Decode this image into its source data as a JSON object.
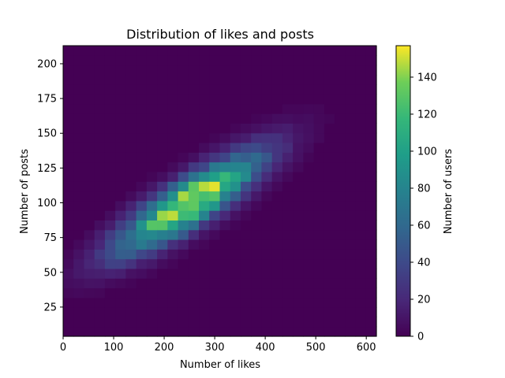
{
  "chart_data": {
    "type": "heatmap",
    "title": "Distribution of likes and posts",
    "xlabel": "Number of likes",
    "ylabel": "Number of posts",
    "colorbar_label": "Number of users",
    "colormap": "viridis",
    "xlim": [
      0,
      620
    ],
    "ylim": [
      4,
      213
    ],
    "x_ticks": [
      0,
      100,
      200,
      300,
      400,
      500,
      600
    ],
    "y_ticks": [
      25,
      50,
      75,
      100,
      125,
      150,
      175,
      200
    ],
    "colorbar_range": [
      0,
      157
    ],
    "colorbar_ticks": [
      0,
      20,
      40,
      60,
      80,
      100,
      120,
      140
    ],
    "density": {
      "center_likes": 250,
      "center_posts": 100,
      "sd_likes": 95,
      "sd_posts": 24,
      "correlation": 0.85,
      "peak_count": 157
    },
    "grid": false,
    "legend": "colorbar-right"
  }
}
